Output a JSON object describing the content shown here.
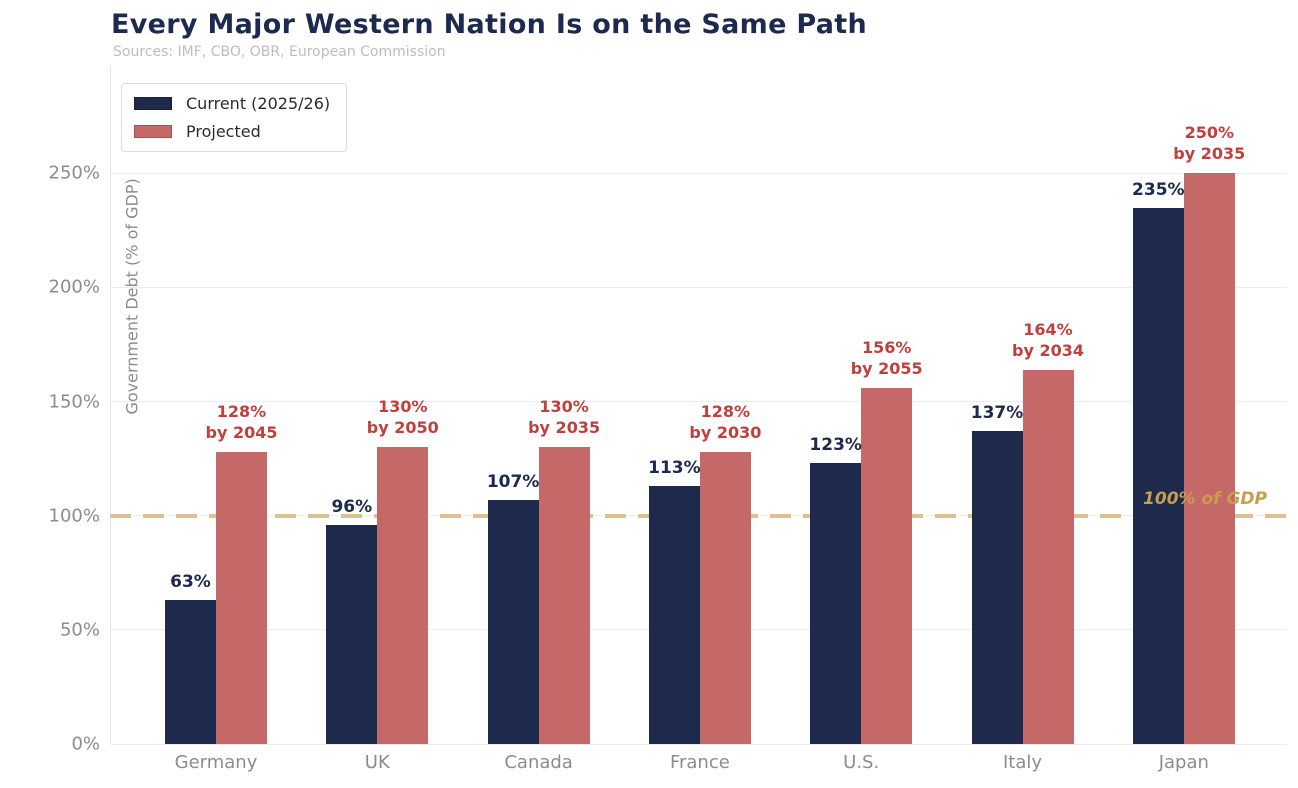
{
  "header": {
    "title": "Every Major Western Nation Is on the Same Path",
    "subtitle": "Sources: IMF, CBO, OBR, European Commission"
  },
  "legend": {
    "items": [
      {
        "label": "Current (2025/26)",
        "color": "#1d2a4b"
      },
      {
        "label": "Projected",
        "color": "#c46868"
      }
    ]
  },
  "colors": {
    "current_bar": "#1d2a4b",
    "projected_bar": "#c46868",
    "current_label_text": "#1b2a4e",
    "projected_label_text": "#c0403e",
    "reference_line": "#ddc18f",
    "reference_label_text": "#c79d4e",
    "grid": "#ededed",
    "axis_text": "#8c8c8c",
    "title_text": "#1b2a4e",
    "subtitle_text": "#bcbcc4"
  },
  "chart_data": {
    "type": "bar",
    "title": "Every Major Western Nation Is on the Same Path",
    "subtitle": "Sources: IMF, CBO, OBR, European Commission",
    "categories": [
      "Germany",
      "UK",
      "Canada",
      "France",
      "U.S.",
      "Italy",
      "Japan"
    ],
    "series": [
      {
        "name": "Current (2025/26)",
        "values": [
          63,
          96,
          107,
          113,
          123,
          137,
          235
        ],
        "value_labels": [
          "63%",
          "96%",
          "107%",
          "113%",
          "123%",
          "137%",
          "235%"
        ]
      },
      {
        "name": "Projected",
        "values": [
          128,
          130,
          130,
          128,
          156,
          164,
          250
        ],
        "value_labels": [
          "128%",
          "130%",
          "130%",
          "128%",
          "156%",
          "164%",
          "250%"
        ],
        "year_labels": [
          "by 2045",
          "by 2050",
          "by 2035",
          "by 2030",
          "by 2055",
          "by 2034",
          "by 2035"
        ]
      }
    ],
    "xlabel": "",
    "ylabel": "Government Debt (% of GDP)",
    "ylim": [
      0,
      297
    ],
    "yticks": {
      "values": [
        0,
        50,
        100,
        150,
        200,
        250
      ],
      "labels": [
        "0%",
        "50%",
        "100%",
        "150%",
        "200%",
        "250%"
      ]
    },
    "grid": "horizontal",
    "legend_position": "upper-left",
    "reference_line": {
      "value": 100,
      "label": "100% of GDP"
    }
  }
}
